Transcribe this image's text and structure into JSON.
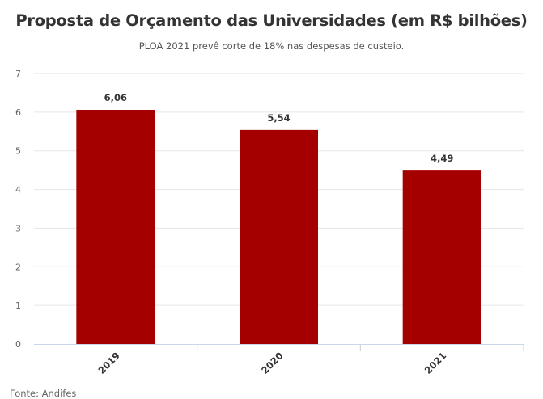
{
  "chart_data": {
    "type": "bar",
    "title": "Proposta de Orçamento das Universidades (em R$ bilhões)",
    "subtitle": "PLOA 2021 prevê corte de 18% nas despesas de custeio.",
    "categories": [
      "2019",
      "2020",
      "2021"
    ],
    "values": [
      6.06,
      5.54,
      4.49
    ],
    "data_labels": [
      "6,06",
      "5,54",
      "4,49"
    ],
    "yticks": [
      "0",
      "1",
      "2",
      "3",
      "4",
      "5",
      "6",
      "7"
    ],
    "ylim": [
      0,
      7
    ],
    "xlabel": "",
    "ylabel": "",
    "grid": true,
    "bar_color": "#a50000",
    "source": "Fonte: Andifes"
  }
}
